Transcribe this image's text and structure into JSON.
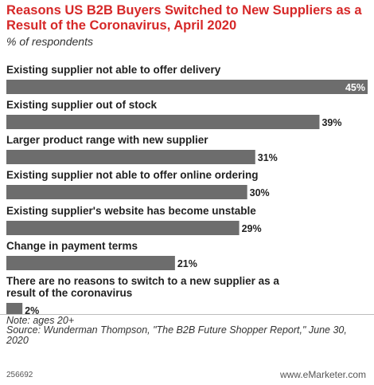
{
  "header": {
    "title": "Reasons US B2B Buyers Switched to New Suppliers as a Result of the Coronavirus, April 2020",
    "subtitle": "% of respondents"
  },
  "chart_data": {
    "type": "bar",
    "orientation": "horizontal",
    "title": "Reasons US B2B Buyers Switched to New Suppliers as a Result of the Coronavirus, April 2020",
    "subtitle": "% of respondents",
    "categories": [
      "Existing supplier not able to offer delivery",
      "Existing supplier out of stock",
      "Larger product range with new supplier",
      "Existing supplier not able to offer online ordering",
      "Existing supplier's website has become unstable",
      "Change in payment terms",
      "There are no reasons to switch to a new supplier as a result of the coronavirus"
    ],
    "values": [
      45,
      39,
      31,
      30,
      29,
      21,
      2
    ],
    "value_labels": [
      "45%",
      "39%",
      "31%",
      "30%",
      "29%",
      "21%",
      "2%"
    ],
    "xlim": [
      0,
      45
    ],
    "grid": false,
    "bar_color": "#6d6d6d"
  },
  "footer": {
    "note": "Note: ages 20+",
    "source": "Source: Wunderman Thompson, \"The B2B Future Shopper Report,\" June 30, 2020",
    "code": "256692",
    "brand": "www.eMarketer.com"
  }
}
